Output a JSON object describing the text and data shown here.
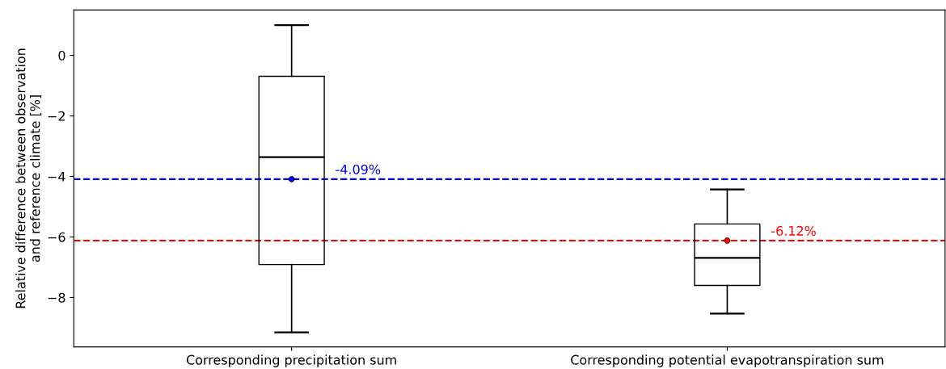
{
  "chart_data": {
    "type": "box",
    "ylabel": "Relative difference between observation\nand reference climate [%]",
    "categories": [
      "Corresponding precipitation sum",
      "Corresponding potential evapotranspiration sum"
    ],
    "boxes": [
      {
        "low": -9.15,
        "q1": -6.91,
        "median": -3.36,
        "q3": -0.69,
        "high": 1.0,
        "mean": -4.09
      },
      {
        "low": -8.53,
        "q1": -7.6,
        "median": -6.69,
        "q3": -5.57,
        "high": -4.43,
        "mean": -6.12
      }
    ],
    "ylim": [
      -9.63,
      1.5
    ],
    "yticks": [
      {
        "value": 0,
        "label": "0"
      },
      {
        "value": -2,
        "label": "−2"
      },
      {
        "value": -4,
        "label": "−4"
      },
      {
        "value": -6,
        "label": "−6"
      },
      {
        "value": -8,
        "label": "−8"
      }
    ],
    "ref_lines": [
      {
        "axis": "y",
        "value": -4.09,
        "label": "-4.09%",
        "color": "#0000ff",
        "line_style": "dashed"
      },
      {
        "axis": "y",
        "value": -6.12,
        "label": "-6.12%",
        "color": "#ff0000",
        "line_style": "dashed"
      }
    ],
    "grid": false,
    "legend": false
  }
}
